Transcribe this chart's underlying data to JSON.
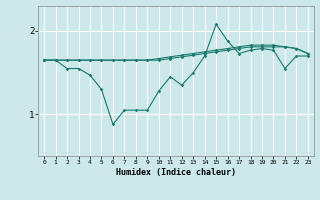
{
  "xlabel": "Humidex (Indice chaleur)",
  "background_color": "#cce8ea",
  "grid_color": "#ffffff",
  "line_color": "#1a7a6e",
  "x_ticks": [
    0,
    1,
    2,
    3,
    4,
    5,
    6,
    7,
    8,
    9,
    10,
    11,
    12,
    13,
    14,
    15,
    16,
    17,
    18,
    19,
    20,
    21,
    22,
    23
  ],
  "ylim": [
    0.5,
    2.3
  ],
  "yticks": [
    1.0,
    2.0
  ],
  "series1": [
    1.65,
    1.65,
    1.55,
    1.55,
    1.47,
    1.3,
    0.88,
    1.05,
    1.05,
    1.05,
    1.28,
    1.45,
    1.35,
    1.5,
    1.7,
    2.08,
    1.88,
    1.73,
    1.77,
    1.79,
    1.77,
    1.55,
    1.7,
    1.7
  ],
  "series2": [
    1.65,
    1.65,
    1.65,
    1.65,
    1.65,
    1.65,
    1.65,
    1.65,
    1.65,
    1.65,
    1.67,
    1.69,
    1.71,
    1.73,
    1.75,
    1.77,
    1.79,
    1.81,
    1.83,
    1.83,
    1.83,
    1.81,
    1.79,
    1.73
  ],
  "series3": [
    1.65,
    1.65,
    1.65,
    1.65,
    1.65,
    1.65,
    1.65,
    1.65,
    1.65,
    1.65,
    1.65,
    1.67,
    1.69,
    1.71,
    1.73,
    1.75,
    1.77,
    1.79,
    1.81,
    1.81,
    1.81,
    1.81,
    1.79,
    1.73
  ]
}
